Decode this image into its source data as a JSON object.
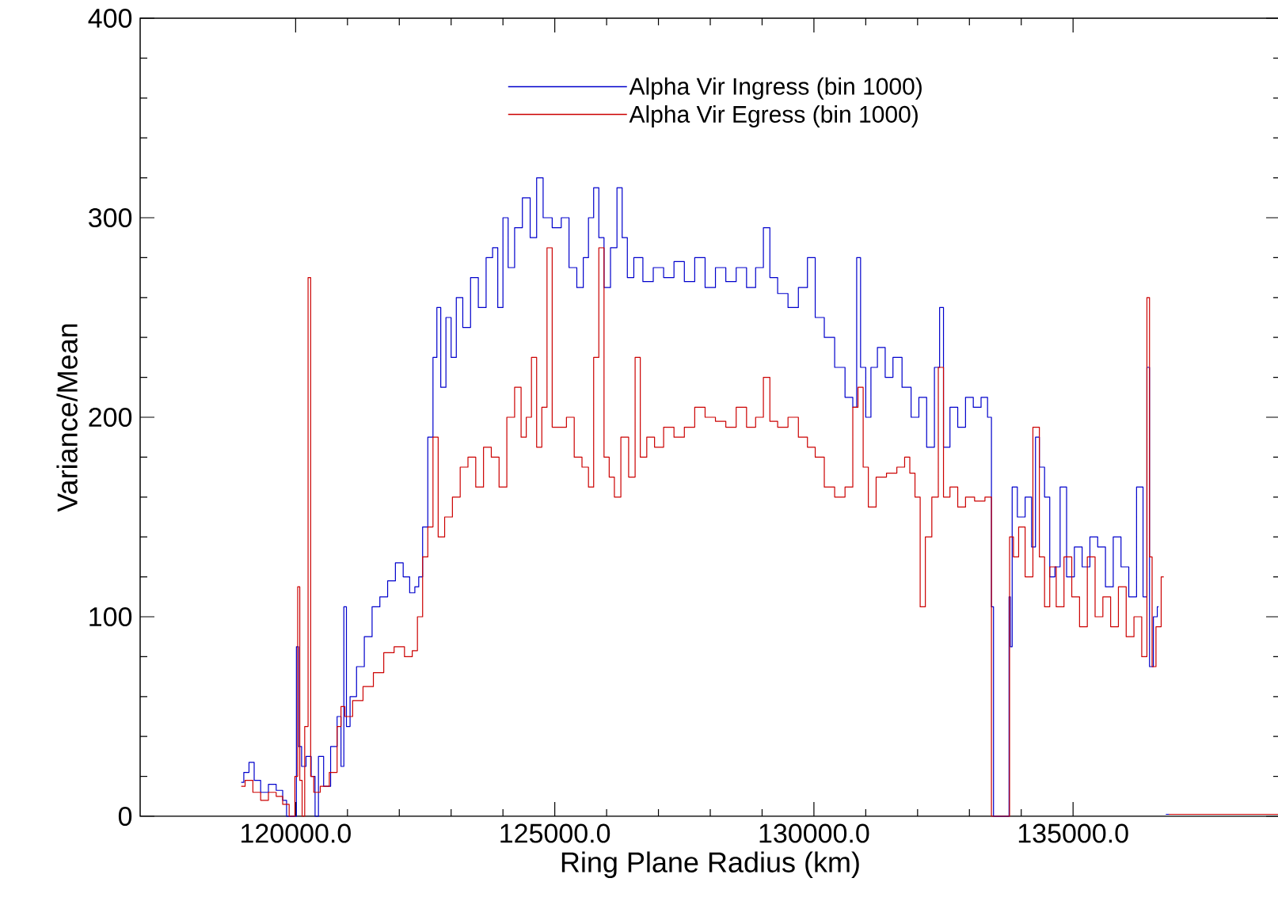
{
  "chart_data": {
    "type": "step",
    "xlabel": "Ring Plane Radius (km)",
    "ylabel": "Variance/Mean",
    "xlim": [
      117000,
      139000
    ],
    "ylim": [
      0,
      400
    ],
    "xticks": [
      {
        "value": 120000,
        "label": "120000.0"
      },
      {
        "value": 125000,
        "label": "125000.0"
      },
      {
        "value": 130000,
        "label": "130000.0"
      },
      {
        "value": 135000,
        "label": "135000.0"
      }
    ],
    "yticks": [
      0,
      100,
      200,
      300,
      400
    ],
    "legend": "top",
    "series": [
      {
        "name": "Alpha Vir Ingress (bin 1000)",
        "color": "#0000cc",
        "x": [
          118950,
          119050,
          119150,
          119250,
          119400,
          119550,
          119700,
          119800,
          119850,
          119950,
          120000,
          120030,
          120080,
          120150,
          120250,
          120350,
          120400,
          120480,
          120600,
          120750,
          120850,
          120900,
          120960,
          121000,
          121100,
          121250,
          121400,
          121550,
          121700,
          121850,
          122000,
          122150,
          122250,
          122350,
          122400,
          122500,
          122600,
          122700,
          122750,
          122850,
          122950,
          123050,
          123150,
          123300,
          123450,
          123600,
          123750,
          123850,
          123950,
          124050,
          124150,
          124300,
          124450,
          124600,
          124700,
          124850,
          125050,
          125200,
          125350,
          125500,
          125600,
          125700,
          125800,
          125900,
          126000,
          126150,
          126250,
          126350,
          126450,
          126600,
          126800,
          127000,
          127200,
          127400,
          127600,
          127800,
          128000,
          128200,
          128400,
          128600,
          128800,
          128950,
          129100,
          129200,
          129400,
          129600,
          129800,
          129950,
          130100,
          130300,
          130500,
          130700,
          130800,
          130850,
          130950,
          131050,
          131150,
          131300,
          131450,
          131600,
          131800,
          131950,
          132100,
          132250,
          132400,
          132450,
          132550,
          132700,
          132850,
          133000,
          133150,
          133300,
          133400,
          133450,
          133480,
          133750,
          133780,
          133800,
          133850,
          134000,
          134150,
          134250,
          134300,
          134400,
          134500,
          134600,
          134700,
          134800,
          134950,
          135100,
          135250,
          135400,
          135550,
          135700,
          135850,
          136000,
          136150,
          136300,
          136400,
          136450,
          136500,
          136600,
          136650,
          136700,
          136790,
          137000
        ],
        "values": [
          17,
          22,
          27,
          18,
          12,
          16,
          13,
          8,
          0,
          0,
          0,
          85,
          35,
          25,
          30,
          20,
          0,
          30,
          15,
          35,
          50,
          25,
          105,
          45,
          60,
          75,
          90,
          105,
          110,
          118,
          127,
          120,
          112,
          115,
          120,
          145,
          190,
          230,
          255,
          215,
          250,
          230,
          260,
          245,
          270,
          255,
          280,
          285,
          255,
          300,
          275,
          295,
          310,
          290,
          320,
          300,
          295,
          300,
          275,
          265,
          280,
          300,
          315,
          290,
          265,
          285,
          315,
          290,
          270,
          280,
          268,
          275,
          270,
          278,
          268,
          280,
          265,
          275,
          268,
          275,
          265,
          275,
          295,
          270,
          262,
          255,
          265,
          280,
          250,
          240,
          225,
          210,
          205,
          280,
          225,
          200,
          225,
          235,
          220,
          230,
          215,
          200,
          210,
          185,
          225,
          255,
          185,
          205,
          195,
          210,
          205,
          210,
          200,
          105,
          0,
          0,
          110,
          85,
          165,
          150,
          160,
          135,
          190,
          175,
          160,
          120,
          125,
          165,
          120,
          135,
          125,
          140,
          135,
          115,
          140,
          125,
          110,
          165,
          110,
          225,
          75,
          100,
          105,
          null,
          1,
          1
        ]
      },
      {
        "name": "Alpha Vir Egress (bin 1000)",
        "color": "#cc0000",
        "x": [
          118950,
          119100,
          119250,
          119400,
          119550,
          119700,
          119800,
          119950,
          120020,
          120060,
          120100,
          120150,
          120200,
          120280,
          120300,
          120400,
          120550,
          120750,
          120850,
          120900,
          121000,
          121200,
          121400,
          121600,
          121800,
          122000,
          122200,
          122300,
          122400,
          122500,
          122600,
          122700,
          122800,
          122950,
          123100,
          123250,
          123400,
          123550,
          123700,
          123850,
          124000,
          124150,
          124300,
          124400,
          124500,
          124600,
          124700,
          124800,
          124900,
          125000,
          125150,
          125300,
          125450,
          125600,
          125700,
          125800,
          125900,
          126000,
          126100,
          126200,
          126350,
          126500,
          126600,
          126700,
          126850,
          127000,
          127200,
          127400,
          127600,
          127800,
          128000,
          128200,
          128400,
          128600,
          128800,
          128950,
          129100,
          129200,
          129400,
          129600,
          129800,
          129950,
          130100,
          130300,
          130500,
          130700,
          130800,
          130900,
          131000,
          131100,
          131300,
          131500,
          131700,
          131800,
          131900,
          132000,
          132100,
          132200,
          132350,
          132450,
          132550,
          132700,
          132850,
          133000,
          133200,
          133400,
          133450,
          133750,
          133800,
          133900,
          134000,
          134150,
          134300,
          134400,
          134500,
          134600,
          134750,
          134900,
          135050,
          135200,
          135350,
          135500,
          135650,
          135800,
          135950,
          136100,
          136250,
          136400,
          136450,
          136500,
          136550,
          136650,
          136750,
          136800,
          136850,
          139000
        ],
        "values": [
          15,
          18,
          12,
          8,
          12,
          10,
          6,
          0,
          20,
          115,
          18,
          0,
          45,
          270,
          20,
          12,
          15,
          22,
          45,
          55,
          50,
          58,
          65,
          72,
          82,
          85,
          80,
          83,
          100,
          130,
          145,
          190,
          140,
          150,
          160,
          175,
          180,
          165,
          185,
          180,
          165,
          200,
          215,
          190,
          200,
          230,
          185,
          205,
          285,
          195,
          195,
          200,
          180,
          175,
          165,
          230,
          285,
          180,
          170,
          160,
          190,
          170,
          230,
          180,
          190,
          185,
          195,
          190,
          195,
          205,
          200,
          198,
          195,
          205,
          195,
          200,
          220,
          198,
          195,
          200,
          190,
          185,
          180,
          165,
          160,
          165,
          205,
          215,
          175,
          155,
          170,
          172,
          175,
          180,
          172,
          160,
          105,
          140,
          160,
          225,
          160,
          165,
          155,
          160,
          158,
          160,
          0,
          0,
          140,
          130,
          145,
          120,
          195,
          130,
          105,
          125,
          105,
          130,
          110,
          95,
          130,
          100,
          110,
          95,
          115,
          90,
          100,
          80,
          260,
          130,
          75,
          95,
          120,
          null,
          1,
          1
        ]
      }
    ]
  }
}
